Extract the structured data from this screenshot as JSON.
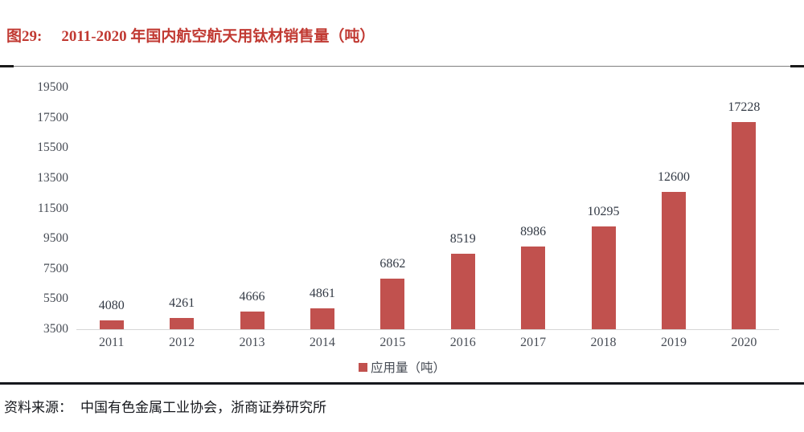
{
  "figure": {
    "label": "图29:",
    "title": "2011-2020 年国内航空航天用钛材销售量（吨）"
  },
  "chart_data": {
    "type": "bar",
    "title": "2011-2020 年国内航空航天用钛材销售量（吨）",
    "categories": [
      "2011",
      "2012",
      "2013",
      "2014",
      "2015",
      "2016",
      "2017",
      "2018",
      "2019",
      "2020"
    ],
    "series": [
      {
        "name": "应用量（吨）",
        "values": [
          4080,
          4261,
          4666,
          4861,
          6862,
          8519,
          8986,
          10295,
          12600,
          17228
        ]
      }
    ],
    "data_labels": [
      4080,
      4261,
      4666,
      4861,
      6862,
      8519,
      8986,
      10295,
      12600,
      17228
    ],
    "xlabel": "",
    "ylabel": "",
    "ylim": [
      3500,
      19500
    ],
    "ytick_step": 2000,
    "yticks": [
      3500,
      5500,
      7500,
      9500,
      11500,
      13500,
      15500,
      17500,
      19500
    ],
    "grid": false,
    "legend_position": "bottom",
    "bar_color": "#c1514e",
    "baseline_color": "#d6d6d6",
    "axis_text_color": "#474c55"
  },
  "legend": {
    "label": "应用量（吨）"
  },
  "source": {
    "label": "资料来源：",
    "text": "中国有色金属工业协会，浙商证券研究所"
  },
  "colors": {
    "title_red": "#c13a33",
    "bar_red": "#c1514e"
  }
}
